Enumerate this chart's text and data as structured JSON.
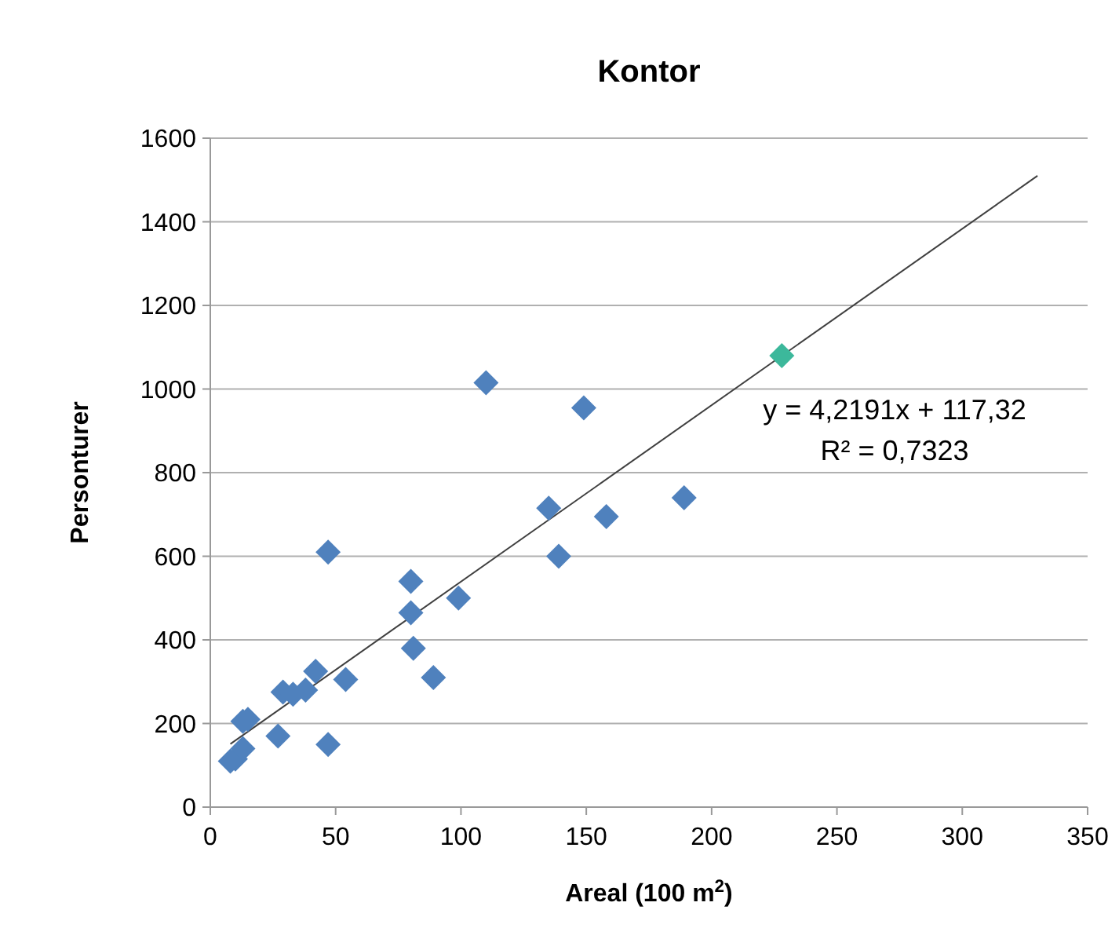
{
  "chart_data": {
    "type": "scatter",
    "title": "Kontor",
    "xlabel": "Areal (100 m$^{2}$)",
    "ylabel": "Personturer",
    "xlim": [
      0,
      350
    ],
    "xticks": [
      0,
      50,
      100,
      150,
      200,
      250,
      300,
      350
    ],
    "ylim": [
      0,
      1600
    ],
    "yticks": [
      0,
      200,
      400,
      600,
      800,
      1000,
      1200,
      1400,
      1600
    ],
    "grid": "y",
    "marker": "diamond",
    "series": [
      {
        "color": "#4f81bd",
        "x": [
          8,
          10,
          13,
          13,
          15,
          27,
          29,
          33,
          38,
          42,
          47,
          47,
          54,
          80,
          80,
          81,
          89,
          99,
          110,
          135,
          139,
          149,
          158,
          189
        ],
        "values": [
          110,
          115,
          140,
          205,
          210,
          170,
          275,
          270,
          280,
          325,
          610,
          150,
          305,
          540,
          465,
          380,
          310,
          500,
          1015,
          715,
          600,
          955,
          695,
          740
        ]
      },
      {
        "color": "#3cb89b",
        "x": [
          228
        ],
        "values": [
          1080
        ]
      },
      {
        "type": "line",
        "color": "#404040",
        "x": [
          8,
          330
        ],
        "values": [
          151,
          1510
        ],
        "marker": "none"
      }
    ],
    "annotations": [
      "y = 4,2191x + 117,32",
      "R² = 0,7323"
    ]
  }
}
